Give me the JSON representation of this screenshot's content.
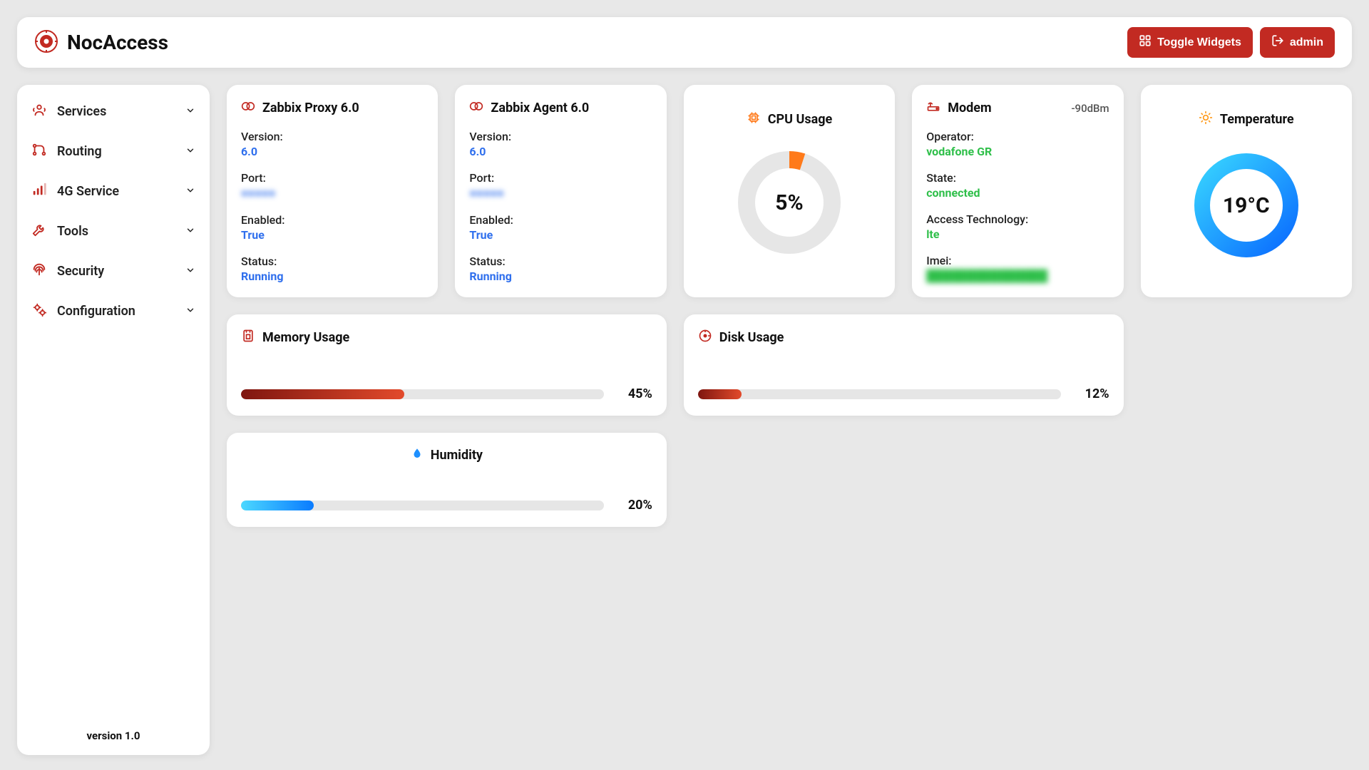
{
  "brand": {
    "title": "NocAccess"
  },
  "colors": {
    "primary_red": "#c22a22",
    "accent_orange": "#ff7a1a",
    "blue_text": "#2f6fed",
    "green_text": "#2fbf4a",
    "card_bg": "#ffffff",
    "page_bg": "#e8e8e8",
    "bar_track": "#e6e6e6",
    "red_grad_from": "#7f1610",
    "red_grad_to": "#e24a2b",
    "blue_grad_from": "#4cd8ff",
    "blue_grad_to": "#0a7bff",
    "temp_grad_from": "#37d3ff",
    "temp_grad_to": "#0a6cff",
    "gauge_track": "#e6e6e6"
  },
  "buttons": {
    "toggle_widgets": "Toggle Widgets",
    "admin": "admin"
  },
  "sidebar": {
    "version_label": "version 1.0",
    "items": [
      {
        "label": "Services",
        "icon": "services-icon"
      },
      {
        "label": "Routing",
        "icon": "routing-icon"
      },
      {
        "label": "4G Service",
        "icon": "signal-icon"
      },
      {
        "label": "Tools",
        "icon": "wrench-icon"
      },
      {
        "label": "Security",
        "icon": "fingerprint-icon"
      },
      {
        "label": "Configuration",
        "icon": "gears-icon"
      }
    ]
  },
  "cards": {
    "zabbix_proxy": {
      "title": "Zabbix Proxy 6.0",
      "fields": {
        "version_k": "Version:",
        "version_v": "6.0",
        "port_k": "Port:",
        "port_v": "●●●●●",
        "enabled_k": "Enabled:",
        "enabled_v": "True",
        "status_k": "Status:",
        "status_v": "Running"
      }
    },
    "zabbix_agent": {
      "title": "Zabbix Agent 6.0",
      "fields": {
        "version_k": "Version:",
        "version_v": "6.0",
        "port_k": "Port:",
        "port_v": "●●●●●",
        "enabled_k": "Enabled:",
        "enabled_v": "True",
        "status_k": "Status:",
        "status_v": "Running"
      }
    },
    "cpu": {
      "title": "CPU Usage",
      "percent": 5,
      "percent_label": "5%"
    },
    "modem": {
      "title": "Modem",
      "signal": "-90dBm",
      "fields": {
        "operator_k": "Operator:",
        "operator_v": "vodafone GR",
        "state_k": "State:",
        "state_v": "connected",
        "tech_k": "Access Technology:",
        "tech_v": "lte",
        "imei_k": "Imei:",
        "imei_v": "███████████████"
      }
    },
    "temperature": {
      "title": "Temperature",
      "value_label": "19°C",
      "ring_percent": 100
    },
    "memory": {
      "title": "Memory Usage",
      "percent": 45,
      "percent_label": "45%"
    },
    "disk": {
      "title": "Disk Usage",
      "percent": 12,
      "percent_label": "12%"
    },
    "humidity": {
      "title": "Humidity",
      "percent": 20,
      "percent_label": "20%"
    }
  }
}
